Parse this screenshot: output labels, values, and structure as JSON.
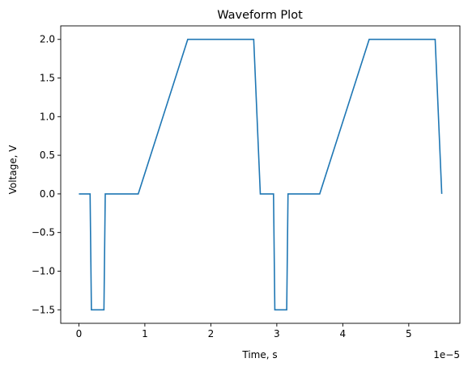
{
  "chart_data": {
    "type": "line",
    "title": "Waveform Plot",
    "xlabel": "Time, s",
    "ylabel": "Voltage, V",
    "x_offset_label": "1e−5",
    "x_scale": 1e-05,
    "xlim": [
      -2.75e-06,
      5.775e-05
    ],
    "ylim": [
      -1.675,
      2.175
    ],
    "x_ticks": [
      0,
      1e-05,
      2e-05,
      3e-05,
      4e-05,
      5e-05
    ],
    "x_tick_labels": [
      "0",
      "1",
      "2",
      "3",
      "4",
      "5"
    ],
    "y_ticks": [
      -1.5,
      -1.0,
      -0.5,
      0.0,
      0.5,
      1.0,
      1.5,
      2.0
    ],
    "y_tick_labels": [
      "−1.5",
      "−1.0",
      "−0.5",
      "0.0",
      "0.5",
      "1.0",
      "1.5",
      "2.0"
    ],
    "series": [
      {
        "color": "#1f77b4",
        "x": [
          0,
          1.7e-06,
          1.9e-06,
          3.8e-06,
          4e-06,
          9e-06,
          1.65e-05,
          2.65e-05,
          2.75e-05,
          2.95e-05,
          2.97e-05,
          3.15e-05,
          3.17e-05,
          3.65e-05,
          4.4e-05,
          5.4e-05,
          5.5e-05
        ],
        "y": [
          0,
          0,
          -1.5,
          -1.5,
          0,
          0,
          2.0,
          2.0,
          0,
          0,
          -1.5,
          -1.5,
          0,
          0,
          2.0,
          2.0,
          0
        ]
      }
    ],
    "grid": false,
    "legend": "none"
  }
}
